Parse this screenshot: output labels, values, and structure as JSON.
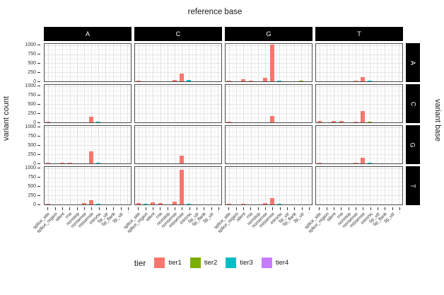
{
  "chart_data": {
    "type": "bar",
    "title": "reference base",
    "ylabel": "variant count",
    "right_label": "variant base",
    "col_facets": [
      "A",
      "C",
      "G",
      "T"
    ],
    "row_facets": [
      "A",
      "C",
      "G",
      "T"
    ],
    "categories": [
      "splice_site",
      "splice_region",
      "silent",
      "rna",
      "nonstop",
      "nonsense",
      "missense",
      "intronic",
      "5p_utr",
      "5p_flank",
      "3p_utr",
      "'"
    ],
    "y_ticks": [
      0,
      250,
      500,
      750,
      1000
    ],
    "ylim": [
      0,
      1060
    ],
    "grid": true,
    "colors": {
      "tier1": "#F8766D",
      "tier2": "#7CAE00",
      "tier3": "#00BFC4",
      "tier4": "#C77CFF"
    },
    "legend": {
      "title": "tier",
      "position": "bottom",
      "entries": [
        {
          "label": "tier1",
          "color": "#F8766D"
        },
        {
          "label": "tier2",
          "color": "#7CAE00"
        },
        {
          "label": "tier3",
          "color": "#00BFC4"
        },
        {
          "label": "tier4",
          "color": "#C77CFF"
        }
      ]
    },
    "facets": [
      {
        "row": "A",
        "col": "A",
        "bars": []
      },
      {
        "row": "A",
        "col": "C",
        "bars": [
          [
            0,
            "tier1",
            12
          ],
          [
            1,
            "tier3",
            8
          ],
          [
            2,
            "tier1",
            6
          ],
          [
            3,
            "tier1",
            6
          ],
          [
            5,
            "tier1",
            45
          ],
          [
            6,
            "tier1",
            230
          ],
          [
            7,
            "tier3",
            35
          ]
        ]
      },
      {
        "row": "A",
        "col": "G",
        "bars": [
          [
            0,
            "tier1",
            20
          ],
          [
            2,
            "tier1",
            55
          ],
          [
            3,
            "tier1",
            18
          ],
          [
            5,
            "tier1",
            95
          ],
          [
            6,
            "tier1",
            1050
          ],
          [
            7,
            "tier3",
            25
          ],
          [
            10,
            "tier2",
            12
          ]
        ]
      },
      {
        "row": "A",
        "col": "T",
        "bars": [
          [
            0,
            "tier1",
            8
          ],
          [
            1,
            "tier3",
            8
          ],
          [
            3,
            "tier1",
            6
          ],
          [
            5,
            "tier1",
            25
          ],
          [
            6,
            "tier1",
            120
          ],
          [
            7,
            "tier3",
            30
          ]
        ]
      },
      {
        "row": "C",
        "col": "A",
        "bars": [
          [
            0,
            "tier1",
            25
          ],
          [
            2,
            "tier1",
            8
          ],
          [
            3,
            "tier1",
            8
          ],
          [
            6,
            "tier1",
            160
          ],
          [
            7,
            "tier3",
            18
          ]
        ]
      },
      {
        "row": "C",
        "col": "C",
        "bars": []
      },
      {
        "row": "C",
        "col": "G",
        "bars": [
          [
            0,
            "tier1",
            25
          ],
          [
            2,
            "tier1",
            8
          ],
          [
            3,
            "tier1",
            8
          ],
          [
            6,
            "tier1",
            190
          ],
          [
            7,
            "tier3",
            10
          ]
        ]
      },
      {
        "row": "C",
        "col": "T",
        "bars": [
          [
            0,
            "tier1",
            35
          ],
          [
            2,
            "tier1",
            40
          ],
          [
            3,
            "tier1",
            40
          ],
          [
            5,
            "tier1",
            12
          ],
          [
            6,
            "tier1",
            330
          ],
          [
            7,
            "tier2",
            20
          ],
          [
            9,
            "tier3",
            8
          ]
        ]
      },
      {
        "row": "G",
        "col": "A",
        "bars": [
          [
            0,
            "tier1",
            30
          ],
          [
            2,
            "tier1",
            25
          ],
          [
            3,
            "tier1",
            20
          ],
          [
            6,
            "tier1",
            350
          ],
          [
            7,
            "tier3",
            25
          ],
          [
            8,
            "tier2",
            8
          ],
          [
            10,
            "tier2",
            6
          ]
        ]
      },
      {
        "row": "G",
        "col": "C",
        "bars": [
          [
            0,
            "tier1",
            8
          ],
          [
            2,
            "tier1",
            8
          ],
          [
            3,
            "tier1",
            8
          ],
          [
            5,
            "tier1",
            8
          ],
          [
            6,
            "tier1",
            230
          ],
          [
            7,
            "tier3",
            8
          ]
        ]
      },
      {
        "row": "G",
        "col": "G",
        "bars": []
      },
      {
        "row": "G",
        "col": "T",
        "bars": [
          [
            0,
            "tier1",
            15
          ],
          [
            1,
            "tier3",
            8
          ],
          [
            2,
            "tier1",
            10
          ],
          [
            3,
            "tier1",
            8
          ],
          [
            5,
            "tier1",
            30
          ],
          [
            6,
            "tier1",
            170
          ],
          [
            7,
            "tier3",
            28
          ],
          [
            9,
            "tier3",
            8
          ],
          [
            10,
            "tier2",
            8
          ]
        ]
      },
      {
        "row": "T",
        "col": "A",
        "bars": [
          [
            0,
            "tier1",
            12
          ],
          [
            2,
            "tier1",
            8
          ],
          [
            3,
            "tier1",
            10
          ],
          [
            5,
            "tier1",
            35
          ],
          [
            6,
            "tier1",
            130
          ],
          [
            7,
            "tier3",
            15
          ]
        ]
      },
      {
        "row": "T",
        "col": "C",
        "bars": [
          [
            0,
            "tier1",
            35
          ],
          [
            1,
            "tier3",
            18
          ],
          [
            2,
            "tier1",
            55
          ],
          [
            3,
            "tier1",
            35
          ],
          [
            5,
            "tier1",
            90
          ],
          [
            6,
            "tier1",
            990
          ],
          [
            7,
            "tier3",
            30
          ],
          [
            8,
            "tier2",
            10
          ]
        ]
      },
      {
        "row": "T",
        "col": "G",
        "bars": [
          [
            0,
            "tier1",
            18
          ],
          [
            1,
            "tier3",
            8
          ],
          [
            2,
            "tier1",
            15
          ],
          [
            3,
            "tier1",
            8
          ],
          [
            5,
            "tier1",
            35
          ],
          [
            6,
            "tier1",
            190
          ],
          [
            7,
            "tier3",
            25
          ],
          [
            9,
            "tier3",
            8
          ],
          [
            10,
            "tier2",
            8
          ]
        ]
      },
      {
        "row": "T",
        "col": "T",
        "bars": []
      }
    ]
  }
}
